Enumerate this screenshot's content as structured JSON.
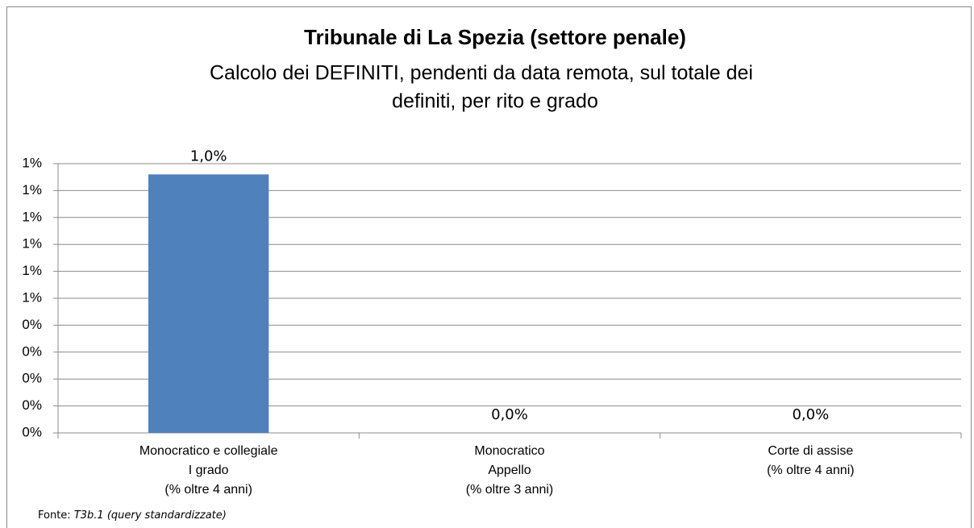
{
  "chart_data": {
    "type": "bar",
    "title": "Tribunale di La Spezia  (settore penale)",
    "subtitle": [
      "Calcolo dei DEFINITI, pendenti da data remota, sul totale dei",
      "definiti, per rito e grado"
    ],
    "categories": [
      [
        "Monocratico e collegiale",
        "I grado",
        "(% oltre 4 anni)"
      ],
      [
        "Monocratico",
        "Appello",
        "(% oltre 3 anni)"
      ],
      [
        "Corte di assise",
        "(% oltre 4 anni)"
      ]
    ],
    "values": [
      0.96,
      0,
      0
    ],
    "value_labels": [
      "1,0%",
      "0,0%",
      "0,0%"
    ],
    "color": "#4f81bd",
    "ylim": [
      0,
      1.0
    ],
    "yticks": [
      {
        "value": 0,
        "label": "0%"
      },
      {
        "value": 0.1,
        "label": "0%"
      },
      {
        "value": 0.2,
        "label": "0%"
      },
      {
        "value": 0.3,
        "label": "0%"
      },
      {
        "value": 0.4,
        "label": "0%"
      },
      {
        "value": 0.5,
        "label": "1%"
      },
      {
        "value": 0.6,
        "label": "1%"
      },
      {
        "value": 0.7,
        "label": "1%"
      },
      {
        "value": 0.8,
        "label": "1%"
      },
      {
        "value": 0.9,
        "label": "1%"
      },
      {
        "value": 1.0,
        "label": "1%"
      }
    ],
    "grid": true,
    "source": {
      "label": "Fonte:",
      "text": "T3b.1 (query standardizzate)"
    }
  }
}
